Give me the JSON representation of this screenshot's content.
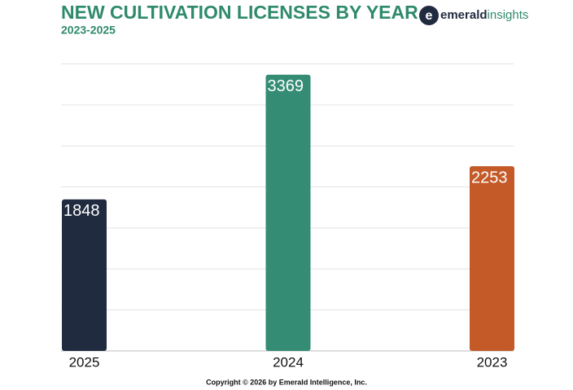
{
  "chart_data": {
    "type": "bar",
    "title": "NEW CULTIVATION LICENSES BY YEAR",
    "subtitle": "2023-2025",
    "categories": [
      "2025",
      "2024",
      "2023"
    ],
    "values": [
      1848,
      3369,
      2253
    ],
    "colors": [
      "#212b40",
      "#358c74",
      "#c45a28"
    ],
    "ylim": [
      0,
      3500
    ],
    "yticks": [
      0,
      500,
      1000,
      1500,
      2000,
      2500,
      3000,
      3500
    ],
    "grid": true
  },
  "logo": {
    "brand": "emerald",
    "suffix": "insights"
  },
  "footer": "Copyright © 2026 by Emerald Intelligence, Inc."
}
